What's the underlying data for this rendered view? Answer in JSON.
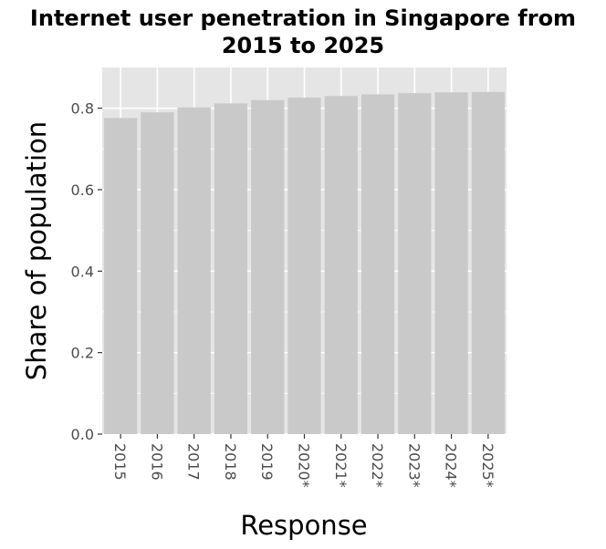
{
  "chart_data": {
    "type": "bar",
    "title": "Internet user penetration in Singapore from 2015 to 2025",
    "title_lines": [
      "Internet user penetration in Singapore from",
      "2015 to 2025"
    ],
    "xlabel": "Response",
    "ylabel": "Share of population",
    "categories": [
      "2015",
      "2016",
      "2017",
      "2018",
      "2019",
      "2020*",
      "2021*",
      "2022*",
      "2023*",
      "2024*",
      "2025*"
    ],
    "values": [
      0.776,
      0.79,
      0.802,
      0.812,
      0.82,
      0.826,
      0.83,
      0.834,
      0.837,
      0.839,
      0.84
    ],
    "yticks": [
      "0.0",
      "0.2",
      "0.4",
      "0.6",
      "0.8"
    ],
    "yticks_values": [
      0,
      0.2,
      0.4,
      0.6,
      0.8
    ],
    "ylim": [
      0,
      0.9
    ],
    "grid": true,
    "legend": "none",
    "colors": {
      "bar": "#c9c9c9",
      "panel": "#e5e5e5",
      "grid": "#ffffff",
      "tick_text": "#4d4d4d"
    }
  }
}
